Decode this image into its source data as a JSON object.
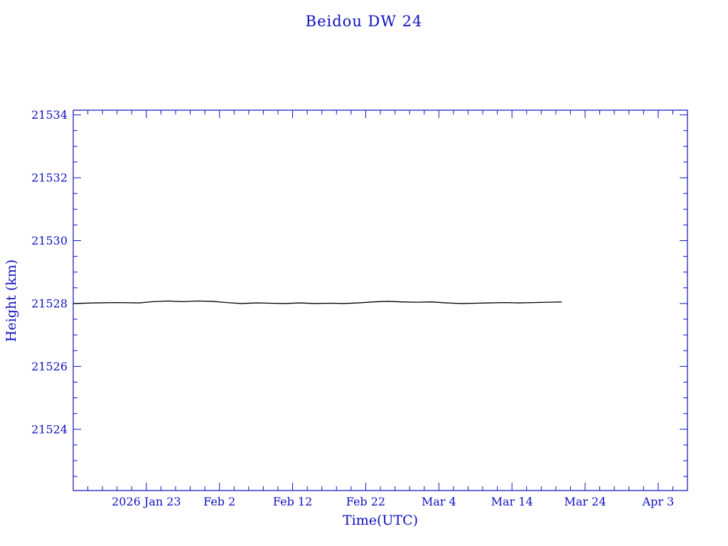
{
  "page": {
    "title": "Beidou DW 24"
  },
  "colors": {
    "axis": "#0f0fbe",
    "text": "#0f0fbe",
    "line": "#000000",
    "background": "#ffffff"
  },
  "chart_data": {
    "type": "line",
    "title": "Beidou DW 24",
    "xlabel": "Time(UTC)",
    "ylabel": "Height (km)",
    "xlim": [
      0,
      84
    ],
    "ylim": [
      21522.05,
      21534.15
    ],
    "x_ticks": [
      {
        "pos": 10,
        "label": "2026 Jan 23"
      },
      {
        "pos": 20,
        "label": "Feb 2"
      },
      {
        "pos": 30,
        "label": "Feb 12"
      },
      {
        "pos": 40,
        "label": "Feb 22"
      },
      {
        "pos": 50,
        "label": "Mar 4"
      },
      {
        "pos": 60,
        "label": "Mar 14"
      },
      {
        "pos": 70,
        "label": "Mar 24"
      },
      {
        "pos": 80,
        "label": "Apr 3"
      }
    ],
    "x_minor_step": 2,
    "y_ticks": [
      21524,
      21526,
      21528,
      21530,
      21532,
      21534
    ],
    "y_minor_step": 0.5,
    "grid": false,
    "legend": "none",
    "series": [
      {
        "name": "height",
        "points": [
          [
            0,
            21528.0
          ],
          [
            3,
            21528.02
          ],
          [
            6,
            21528.03
          ],
          [
            9,
            21528.02
          ],
          [
            11,
            21528.06
          ],
          [
            13,
            21528.08
          ],
          [
            15,
            21528.06
          ],
          [
            17,
            21528.08
          ],
          [
            19,
            21528.07
          ],
          [
            21,
            21528.03
          ],
          [
            23,
            21528.0
          ],
          [
            25,
            21528.02
          ],
          [
            27,
            21528.01
          ],
          [
            29,
            21528.0
          ],
          [
            31,
            21528.02
          ],
          [
            33,
            21528.0
          ],
          [
            35,
            21528.01
          ],
          [
            37,
            21528.0
          ],
          [
            39,
            21528.02
          ],
          [
            41,
            21528.05
          ],
          [
            43,
            21528.07
          ],
          [
            45,
            21528.05
          ],
          [
            47,
            21528.04
          ],
          [
            49,
            21528.05
          ],
          [
            51,
            21528.02
          ],
          [
            53,
            21528.0
          ],
          [
            55,
            21528.01
          ],
          [
            57,
            21528.02
          ],
          [
            59,
            21528.03
          ],
          [
            61,
            21528.02
          ],
          [
            63,
            21528.03
          ],
          [
            65,
            21528.04
          ],
          [
            66.8,
            21528.05
          ]
        ]
      }
    ]
  }
}
